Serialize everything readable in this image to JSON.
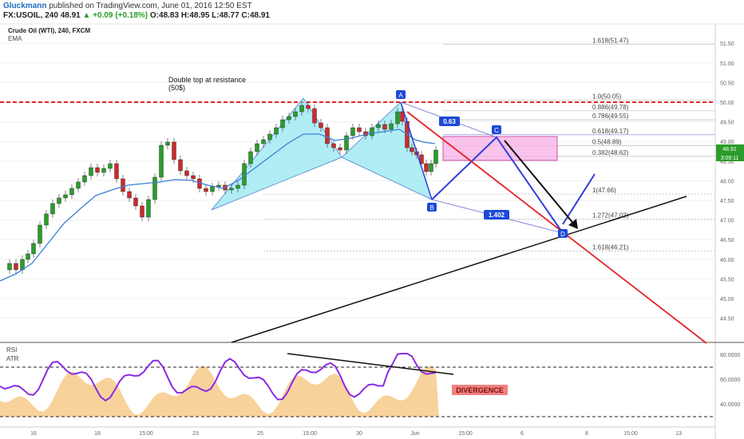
{
  "header": {
    "author": "Gluckmann",
    "published": "published on TradingView.com, June 01, 2016 12:50 EST",
    "symbol": "FX:USOIL, 240",
    "last": "48.91",
    "change": "+0.09 (+0.18%)",
    "ohlc": "O:48.83 H:48.95 L:48.77 C:48.91"
  },
  "chart": {
    "title": "Crude Oil (WTI), 240, FXCM",
    "indicator": "EMA",
    "annotation": "Double top at resistance",
    "annotation2": "(50$)",
    "price_tag": "48.91",
    "time_tag": "3:09:11",
    "rsi_label": "RSI",
    "atr_label": "ATR",
    "divergence_label": "DIVERGENCE",
    "pattern_points": {
      "A": "A",
      "B": "B",
      "C": "C",
      "D": "D"
    },
    "ratio_ac": "0.63",
    "ratio_bd": "1.402",
    "fib_levels": [
      {
        "label": "1.618(51.47)",
        "y": 51.47
      },
      {
        "label": "1.0(50.05)",
        "y": 50.05
      },
      {
        "label": "0.886(49.78)",
        "y": 49.78
      },
      {
        "label": "0.786(49.55)",
        "y": 49.55
      },
      {
        "label": "0.618(49.17)",
        "y": 49.17
      },
      {
        "label": "0.5(48.89)",
        "y": 48.89
      },
      {
        "label": "0.382(48.62)",
        "y": 48.62
      },
      {
        "label": "1(47.66)",
        "y": 47.66
      },
      {
        "label": "1.272(47.02)",
        "y": 47.02
      },
      {
        "label": "1.618(46.21)",
        "y": 46.21
      }
    ],
    "price_ticks": [
      "51.50",
      "51.00",
      "50.50",
      "50.00",
      "49.50",
      "49.00",
      "48.50",
      "48.00",
      "47.50",
      "47.00",
      "46.50",
      "46.00",
      "45.50",
      "45.00",
      "44.50"
    ],
    "price_tick_values": [
      51.5,
      51,
      50.5,
      50,
      49.5,
      49,
      48.5,
      48,
      47.5,
      47,
      46.5,
      46,
      45.5,
      45,
      44.5
    ],
    "rsi_ticks": [
      "80.0000",
      "60.0000",
      "40.0000"
    ],
    "time_ticks": [
      "16",
      "18",
      "15:00",
      "23",
      "25",
      "15:00",
      "30",
      "Jun",
      "15:00",
      "6",
      "8",
      "15:00",
      "13"
    ]
  },
  "colors": {
    "up": "#2a9d2a",
    "down": "#cc2b2b",
    "ema": "#3b7fd6",
    "resistance": "#e52424",
    "pattern_fill": "#8ee6ef",
    "rsi_line": "#8a2be2",
    "atr_fill": "#f5c37a",
    "prz_box": "#f7b4e6",
    "projection": "#2f3fdc",
    "label_bg": "#1e49d8"
  }
}
